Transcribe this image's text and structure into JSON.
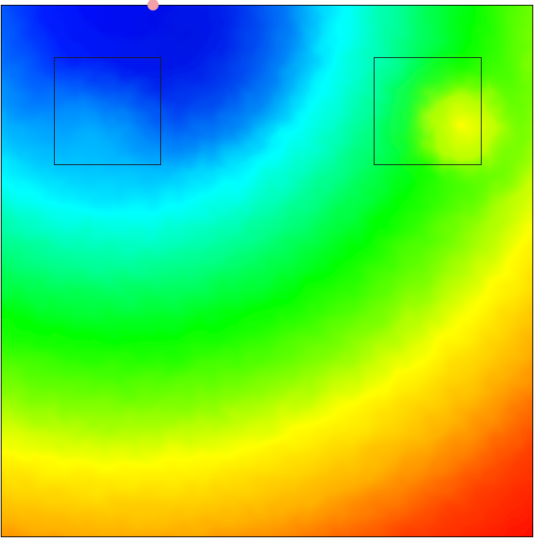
{
  "heatmap": {
    "colormap": "jet",
    "colormap_stops": [
      "#0000ff",
      "#00ffff",
      "#00ff00",
      "#ffff00",
      "#ff0000"
    ],
    "description_visible_text": ""
  },
  "regions": [
    {
      "id": "region-a"
    },
    {
      "id": "region-b"
    }
  ],
  "probe": {
    "color": "#f4a0a8"
  }
}
